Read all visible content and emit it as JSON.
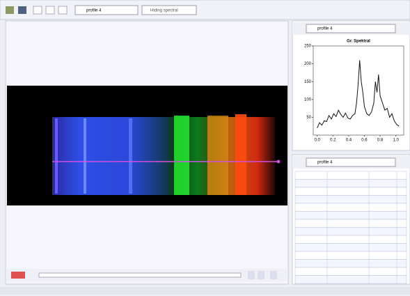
{
  "toolbar": {
    "profile": "profile 4",
    "option": "Hiding spectral"
  },
  "right_panel": {
    "profile": "profile 4"
  },
  "table": {
    "profile": "profile 4"
  },
  "chart_data": {
    "type": "line",
    "title": "Gr. Spektral",
    "x": [
      0.0,
      0.03,
      0.06,
      0.09,
      0.12,
      0.15,
      0.18,
      0.21,
      0.24,
      0.27,
      0.3,
      0.33,
      0.36,
      0.39,
      0.42,
      0.45,
      0.48,
      0.5,
      0.52,
      0.54,
      0.56,
      0.58,
      0.6,
      0.63,
      0.66,
      0.69,
      0.72,
      0.74,
      0.76,
      0.78,
      0.8,
      0.83,
      0.86,
      0.89,
      0.92,
      0.95,
      0.98,
      1.01,
      1.04
    ],
    "values": [
      20,
      35,
      28,
      40,
      38,
      55,
      45,
      60,
      52,
      70,
      58,
      50,
      62,
      48,
      45,
      55,
      60,
      90,
      140,
      210,
      150,
      120,
      80,
      60,
      55,
      65,
      90,
      150,
      120,
      170,
      110,
      90,
      70,
      75,
      50,
      60,
      40,
      30,
      25
    ],
    "xlim": [
      -0.05,
      1.1
    ],
    "ylim": [
      0,
      250
    ],
    "xticks": [
      {
        "value": 0,
        "label": "0.0"
      },
      0.2,
      0.4,
      0.6,
      0.8,
      {
        "value": 1,
        "label": "1.0"
      }
    ],
    "yticks": [
      50,
      100,
      150,
      200,
      250
    ],
    "color": "#111111"
  }
}
